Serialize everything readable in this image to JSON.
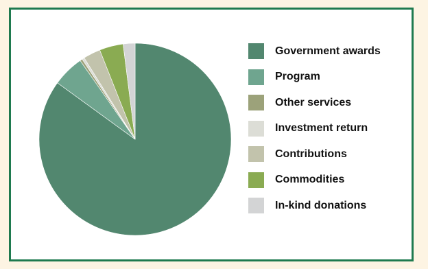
{
  "chart_data": {
    "type": "pie",
    "title": "",
    "legend_position": "right",
    "slices": [
      {
        "label": "Government awards",
        "value": 85.0,
        "color": "#52876f"
      },
      {
        "label": "Program",
        "value": 5.3,
        "color": "#6fa58f"
      },
      {
        "label": "Other services",
        "value": 0.4,
        "color": "#9ca27a"
      },
      {
        "label": "Investment return",
        "value": 0.4,
        "color": "#dcddd6"
      },
      {
        "label": "Contributions",
        "value": 2.9,
        "color": "#c2c3ac"
      },
      {
        "label": "Commodities",
        "value": 4.0,
        "color": "#8aab52"
      },
      {
        "label": "In-kind donations",
        "value": 2.0,
        "color": "#d3d4d5"
      }
    ]
  }
}
